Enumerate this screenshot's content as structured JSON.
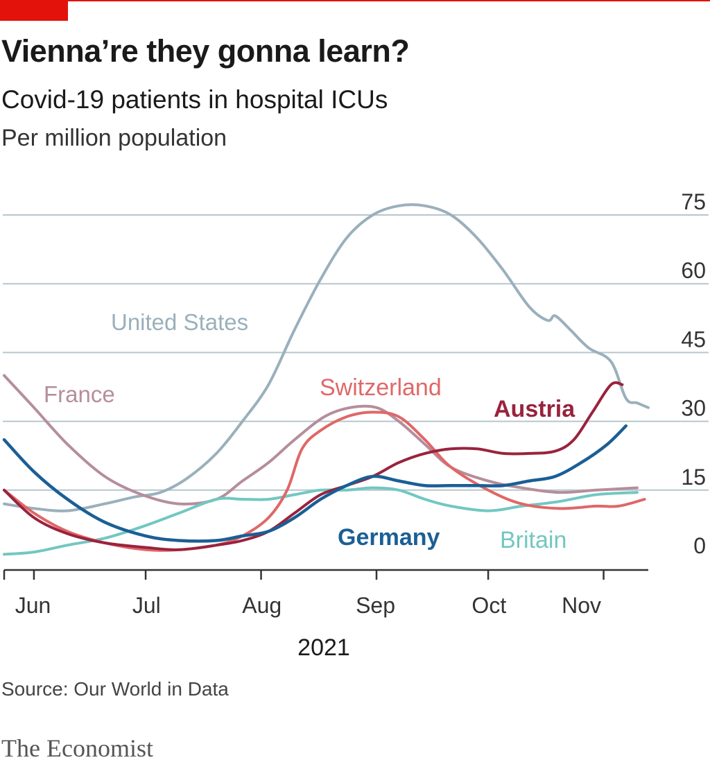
{
  "header": {
    "title": "Vienna’re they gonna learn?",
    "subtitle": "Covid-19 patients in hospital ICUs",
    "unit": "Per million population"
  },
  "footer": {
    "source": "Source: Our World in Data",
    "brand": "The Economist"
  },
  "colors": {
    "accent": "#e3120b",
    "grid": "#b7c6cc",
    "axis": "#333333",
    "United States": "#9ab0bc",
    "France": "#b58e9b",
    "Switzerland": "#e06767",
    "Austria": "#99233e",
    "Germany": "#1a5f96",
    "Britain": "#72c7c1"
  },
  "chart_data": {
    "type": "line",
    "title": "Vienna’re they gonna learn?",
    "subtitle": "Covid-19 patients in hospital ICUs",
    "ylabel": "Per million population",
    "xlabel": "2021",
    "x_range": [
      "2021-05-24",
      "2021-11-13"
    ],
    "ylim": [
      0,
      75
    ],
    "yticks": [
      0,
      15,
      30,
      45,
      60,
      75
    ],
    "month_ticks": [
      "2021-06-01",
      "2021-07-01",
      "2021-08-01",
      "2021-09-01",
      "2021-10-01",
      "2021-11-01"
    ],
    "month_labels": [
      "Jun",
      "Jul",
      "Aug",
      "Sep",
      "Oct",
      "Nov"
    ],
    "year_label": "2021",
    "grid": true,
    "series": [
      {
        "name": "United States",
        "points": [
          [
            "2021-05-24",
            12.0
          ],
          [
            "2021-06-01",
            11.0
          ],
          [
            "2021-06-10",
            10.5
          ],
          [
            "2021-06-20",
            12.0
          ],
          [
            "2021-06-28",
            13.5
          ],
          [
            "2021-07-05",
            14.5
          ],
          [
            "2021-07-12",
            17.5
          ],
          [
            "2021-07-20",
            23.0
          ],
          [
            "2021-07-27",
            30.0
          ],
          [
            "2021-08-03",
            38.0
          ],
          [
            "2021-08-10",
            50.0
          ],
          [
            "2021-08-17",
            61.0
          ],
          [
            "2021-08-24",
            70.0
          ],
          [
            "2021-08-31",
            75.0
          ],
          [
            "2021-09-07",
            77.0
          ],
          [
            "2021-09-14",
            77.0
          ],
          [
            "2021-09-21",
            75.0
          ],
          [
            "2021-09-28",
            70.0
          ],
          [
            "2021-10-05",
            63.0
          ],
          [
            "2021-10-12",
            55.0
          ],
          [
            "2021-10-17",
            52.0
          ],
          [
            "2021-10-19",
            53.0
          ],
          [
            "2021-10-23",
            50.0
          ],
          [
            "2021-10-28",
            46.0
          ],
          [
            "2021-11-03",
            43.0
          ],
          [
            "2021-11-07",
            35.0
          ],
          [
            "2021-11-10",
            34.0
          ],
          [
            "2021-11-13",
            33.0
          ]
        ]
      },
      {
        "name": "France",
        "points": [
          [
            "2021-05-24",
            40.0
          ],
          [
            "2021-06-01",
            33.0
          ],
          [
            "2021-06-10",
            25.0
          ],
          [
            "2021-06-20",
            18.0
          ],
          [
            "2021-06-30",
            14.0
          ],
          [
            "2021-07-10",
            12.0
          ],
          [
            "2021-07-20",
            13.0
          ],
          [
            "2021-07-27",
            17.0
          ],
          [
            "2021-08-03",
            21.0
          ],
          [
            "2021-08-10",
            26.0
          ],
          [
            "2021-08-18",
            31.0
          ],
          [
            "2021-08-25",
            33.0
          ],
          [
            "2021-09-01",
            33.0
          ],
          [
            "2021-09-07",
            30.0
          ],
          [
            "2021-09-14",
            25.0
          ],
          [
            "2021-09-21",
            20.0
          ],
          [
            "2021-10-01",
            17.0
          ],
          [
            "2021-10-10",
            15.5
          ],
          [
            "2021-10-20",
            14.5
          ],
          [
            "2021-10-30",
            15.0
          ],
          [
            "2021-11-10",
            15.5
          ]
        ]
      },
      {
        "name": "Switzerland",
        "points": [
          [
            "2021-05-24",
            15.0
          ],
          [
            "2021-06-01",
            10.0
          ],
          [
            "2021-06-10",
            6.0
          ],
          [
            "2021-06-20",
            3.5
          ],
          [
            "2021-07-01",
            2.0
          ],
          [
            "2021-07-10",
            2.0
          ],
          [
            "2021-07-20",
            3.0
          ],
          [
            "2021-07-27",
            5.0
          ],
          [
            "2021-08-03",
            9.0
          ],
          [
            "2021-08-08",
            15.0
          ],
          [
            "2021-08-12",
            24.0
          ],
          [
            "2021-08-17",
            28.0
          ],
          [
            "2021-08-24",
            31.0
          ],
          [
            "2021-08-31",
            32.0
          ],
          [
            "2021-09-07",
            31.0
          ],
          [
            "2021-09-14",
            26.0
          ],
          [
            "2021-09-21",
            20.0
          ],
          [
            "2021-10-01",
            15.0
          ],
          [
            "2021-10-10",
            12.0
          ],
          [
            "2021-10-20",
            11.0
          ],
          [
            "2021-10-30",
            11.5
          ],
          [
            "2021-11-05",
            11.5
          ],
          [
            "2021-11-12",
            13.0
          ]
        ]
      },
      {
        "name": "Austria",
        "points": [
          [
            "2021-05-24",
            15.0
          ],
          [
            "2021-06-01",
            9.0
          ],
          [
            "2021-06-10",
            5.5
          ],
          [
            "2021-06-20",
            3.5
          ],
          [
            "2021-07-01",
            2.5
          ],
          [
            "2021-07-10",
            2.0
          ],
          [
            "2021-07-20",
            3.0
          ],
          [
            "2021-07-27",
            4.0
          ],
          [
            "2021-08-03",
            6.0
          ],
          [
            "2021-08-10",
            10.0
          ],
          [
            "2021-08-17",
            14.0
          ],
          [
            "2021-08-24",
            16.0
          ],
          [
            "2021-08-31",
            18.0
          ],
          [
            "2021-09-07",
            21.0
          ],
          [
            "2021-09-14",
            23.0
          ],
          [
            "2021-09-21",
            24.0
          ],
          [
            "2021-09-28",
            24.0
          ],
          [
            "2021-10-05",
            23.0
          ],
          [
            "2021-10-12",
            23.0
          ],
          [
            "2021-10-19",
            23.5
          ],
          [
            "2021-10-24",
            26.0
          ],
          [
            "2021-10-29",
            32.0
          ],
          [
            "2021-11-03",
            38.0
          ],
          [
            "2021-11-06",
            38.0
          ]
        ]
      },
      {
        "name": "Germany",
        "points": [
          [
            "2021-05-24",
            26.0
          ],
          [
            "2021-06-01",
            19.0
          ],
          [
            "2021-06-10",
            13.0
          ],
          [
            "2021-06-20",
            8.0
          ],
          [
            "2021-07-01",
            5.0
          ],
          [
            "2021-07-10",
            4.0
          ],
          [
            "2021-07-20",
            4.0
          ],
          [
            "2021-07-27",
            5.0
          ],
          [
            "2021-08-03",
            6.0
          ],
          [
            "2021-08-10",
            9.0
          ],
          [
            "2021-08-17",
            13.0
          ],
          [
            "2021-08-24",
            16.0
          ],
          [
            "2021-08-31",
            18.0
          ],
          [
            "2021-09-07",
            17.0
          ],
          [
            "2021-09-14",
            16.0
          ],
          [
            "2021-09-21",
            16.0
          ],
          [
            "2021-09-28",
            16.0
          ],
          [
            "2021-10-05",
            16.0
          ],
          [
            "2021-10-12",
            17.0
          ],
          [
            "2021-10-19",
            18.0
          ],
          [
            "2021-10-26",
            21.0
          ],
          [
            "2021-11-02",
            25.0
          ],
          [
            "2021-11-07",
            29.0
          ]
        ]
      },
      {
        "name": "Britain",
        "points": [
          [
            "2021-05-24",
            1.0
          ],
          [
            "2021-06-01",
            1.5
          ],
          [
            "2021-06-10",
            3.0
          ],
          [
            "2021-06-20",
            4.5
          ],
          [
            "2021-06-30",
            7.0
          ],
          [
            "2021-07-10",
            10.0
          ],
          [
            "2021-07-20",
            13.0
          ],
          [
            "2021-07-27",
            13.0
          ],
          [
            "2021-08-03",
            13.0
          ],
          [
            "2021-08-10",
            14.0
          ],
          [
            "2021-08-17",
            15.0
          ],
          [
            "2021-08-24",
            15.0
          ],
          [
            "2021-08-31",
            15.5
          ],
          [
            "2021-09-07",
            15.0
          ],
          [
            "2021-09-14",
            13.0
          ],
          [
            "2021-09-21",
            11.5
          ],
          [
            "2021-10-01",
            10.5
          ],
          [
            "2021-10-10",
            11.5
          ],
          [
            "2021-10-20",
            12.5
          ],
          [
            "2021-10-30",
            14.0
          ],
          [
            "2021-11-10",
            14.5
          ]
        ]
      }
    ]
  }
}
